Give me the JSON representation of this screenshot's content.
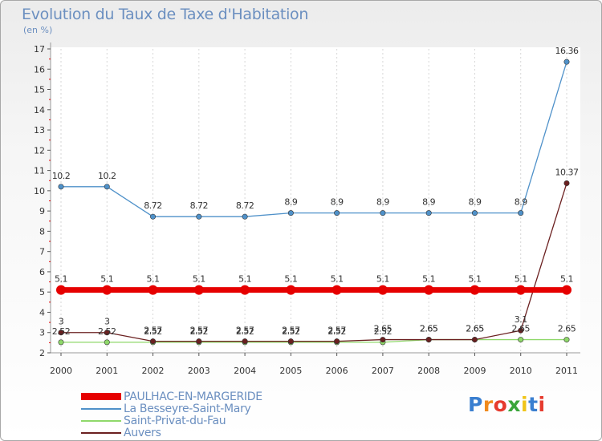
{
  "title": "Evolution du Taux de Taxe d'Habitation",
  "subtitle": "(en %)",
  "chart_data": {
    "type": "line",
    "title": "Evolution du Taux de Taxe d'Habitation",
    "ylabel": "(en %)",
    "xlabel": "",
    "categories": [
      "2000",
      "2001",
      "2002",
      "2003",
      "2004",
      "2005",
      "2006",
      "2007",
      "2008",
      "2009",
      "2010",
      "2011"
    ],
    "ylim": [
      2,
      17
    ],
    "yticks": [
      "2",
      "3",
      "4",
      "5",
      "6",
      "7",
      "8",
      "9",
      "10",
      "11",
      "12",
      "13",
      "14",
      "15",
      "16",
      "17"
    ],
    "series": [
      {
        "name": "PAULHAC-EN-MARGERIDE",
        "color": "#e60000",
        "values": [
          5.1,
          5.1,
          5.1,
          5.1,
          5.1,
          5.1,
          5.1,
          5.1,
          5.1,
          5.1,
          5.1,
          5.1
        ],
        "labels": [
          "5.1",
          "5.1",
          "5.1",
          "5.1",
          "5.1",
          "5.1",
          "5.1",
          "5.1",
          "5.1",
          "5.1",
          "5.1",
          "5.1"
        ]
      },
      {
        "name": "La Besseyre-Saint-Mary",
        "color": "#4f91c9",
        "values": [
          10.2,
          10.2,
          8.72,
          8.72,
          8.72,
          8.9,
          8.9,
          8.9,
          8.9,
          8.9,
          8.9,
          16.36
        ],
        "labels": [
          "10.2",
          "10.2",
          "8.72",
          "8.72",
          "8.72",
          "8.9",
          "8.9",
          "8.9",
          "8.9",
          "8.9",
          "8.9",
          "16.36"
        ]
      },
      {
        "name": "Saint-Privat-du-Fau",
        "color": "#8fd86a",
        "values": [
          2.52,
          2.52,
          2.52,
          2.52,
          2.52,
          2.52,
          2.52,
          2.52,
          2.65,
          2.65,
          2.65,
          2.65
        ],
        "labels": [
          "2.52",
          "2.52",
          "2.52",
          "2.52",
          "2.52",
          "2.52",
          "2.52",
          "2.52",
          "2.65",
          "2.65",
          "2.65",
          "2.65"
        ]
      },
      {
        "name": "Auvers",
        "color": "#6b2020",
        "values": [
          3,
          3,
          2.57,
          2.57,
          2.57,
          2.57,
          2.57,
          2.65,
          2.65,
          2.65,
          3.1,
          10.37
        ],
        "labels": [
          "3",
          "3",
          "2.57",
          "2.57",
          "2.57",
          "2.57",
          "2.57",
          "2.65",
          "2.65",
          "2.65",
          "3.1",
          "10.37"
        ]
      }
    ]
  },
  "legend": [
    {
      "label": "PAULHAC-EN-MARGERIDE",
      "color": "#e60000"
    },
    {
      "label": "La Besseyre-Saint-Mary",
      "color": "#4f91c9"
    },
    {
      "label": "Saint-Privat-du-Fau",
      "color": "#8fd86a"
    },
    {
      "label": "Auvers",
      "color": "#6b2020"
    }
  ],
  "logo": {
    "letters": [
      "P",
      "r",
      "o",
      "x",
      "i",
      "t",
      "i"
    ],
    "colors": [
      "#3a7fd0",
      "#f08a1c",
      "#e63b2e",
      "#3aa53a",
      "#f0c419",
      "#3a7fd0",
      "#e63b2e"
    ]
  }
}
